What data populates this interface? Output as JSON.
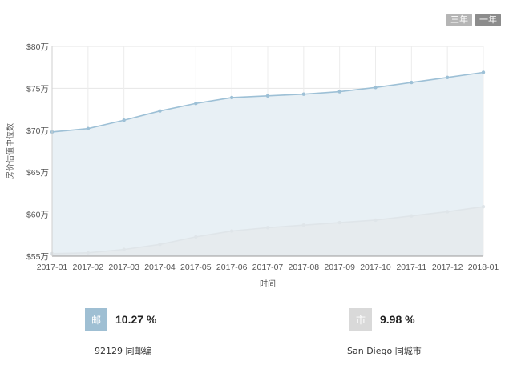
{
  "range_buttons": [
    {
      "label": "三年",
      "active": false
    },
    {
      "label": "一年",
      "active": true
    }
  ],
  "chart_data": {
    "type": "area",
    "xlabel": "时间",
    "ylabel": "房价估值中位数",
    "categories": [
      "2017-01",
      "2017-02",
      "2017-03",
      "2017-04",
      "2017-05",
      "2017-06",
      "2017-07",
      "2017-08",
      "2017-09",
      "2017-10",
      "2017-11",
      "2017-12",
      "2018-01"
    ],
    "y_ticks": [
      "$55万",
      "$60万",
      "$65万",
      "$70万",
      "$75万",
      "$80万"
    ],
    "ylim": [
      55,
      80
    ],
    "grid": true,
    "series": [
      {
        "values": [
          69.8,
          70.2,
          71.2,
          72.3,
          73.2,
          73.9,
          74.1,
          74.3,
          74.6,
          75.1,
          75.7,
          76.3,
          76.9
        ],
        "color": "#9dc0d6",
        "fill": "#e8f0f5"
      },
      {
        "values": [
          55.3,
          55.4,
          55.8,
          56.4,
          57.3,
          58.0,
          58.4,
          58.7,
          59.0,
          59.3,
          59.8,
          60.3,
          60.9
        ],
        "color": "#dfe5e9",
        "fill": "#e6ebee"
      }
    ]
  },
  "stats": [
    {
      "badge": "邮",
      "value": "10.27 %",
      "caption": "92129 同邮编",
      "color": "#9fbfd3"
    },
    {
      "badge": "市",
      "value": "9.98 %",
      "caption": "San Diego 同城市",
      "color": "#d9d9d9"
    }
  ]
}
